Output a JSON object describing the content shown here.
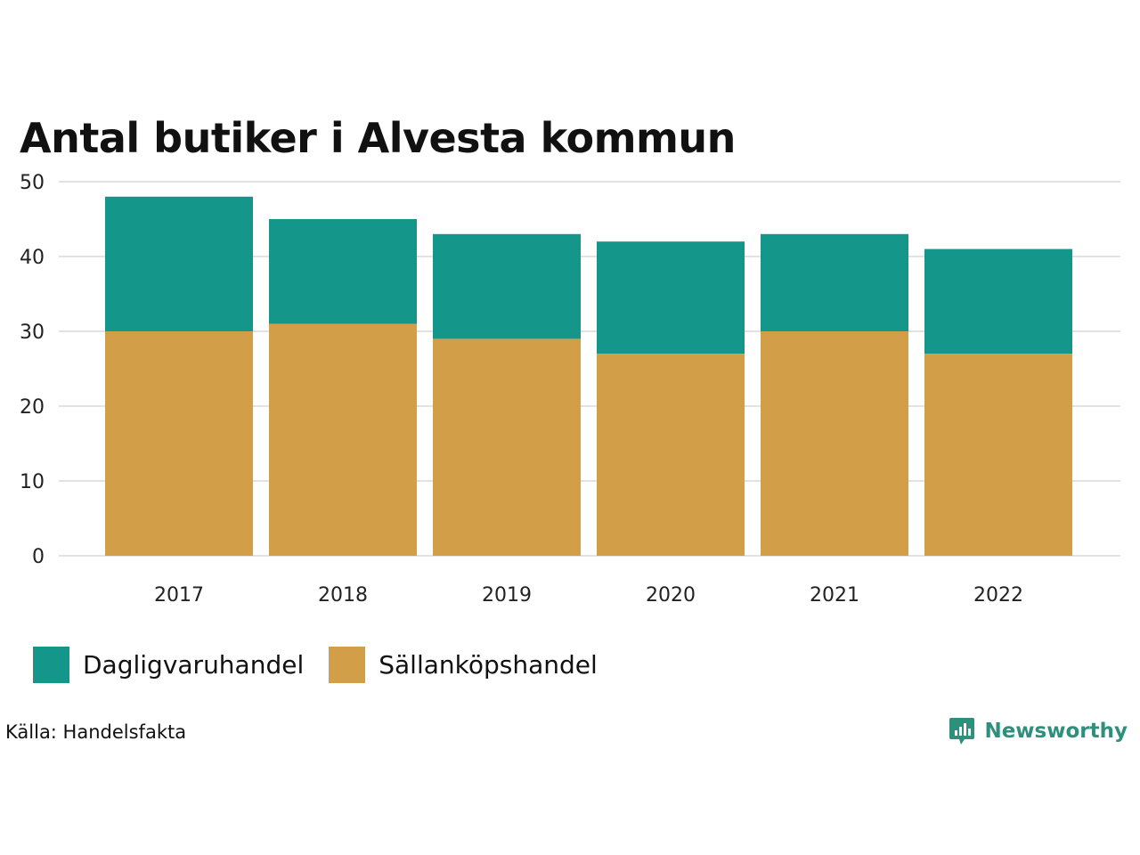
{
  "chart_data": {
    "type": "bar",
    "stacked": true,
    "title": "Antal butiker i Alvesta kommun",
    "xlabel": "",
    "ylabel": "",
    "categories": [
      "2017",
      "2018",
      "2019",
      "2020",
      "2021",
      "2022"
    ],
    "series": [
      {
        "name": "Sällanköpshandel",
        "color": "#d29e48",
        "values": [
          30,
          31,
          29,
          27,
          30,
          27
        ]
      },
      {
        "name": "Dagligvaruhandel",
        "color": "#15968a",
        "values": [
          18,
          14,
          14,
          15,
          13,
          14
        ]
      }
    ],
    "ylim": [
      0,
      50
    ],
    "yticks": [
      0,
      10,
      20,
      30,
      40,
      50
    ],
    "grid": true,
    "legend_position": "bottom-left"
  },
  "legend": {
    "items": [
      {
        "label": "Dagligvaruhandel",
        "color": "#15968a"
      },
      {
        "label": "Sällanköpshandel",
        "color": "#d29e48"
      }
    ]
  },
  "source": "Källa: Handelsfakta",
  "brand": {
    "name": "Newsworthy",
    "icon": "newsworthy-logo-icon",
    "color": "#2f8f7d"
  }
}
